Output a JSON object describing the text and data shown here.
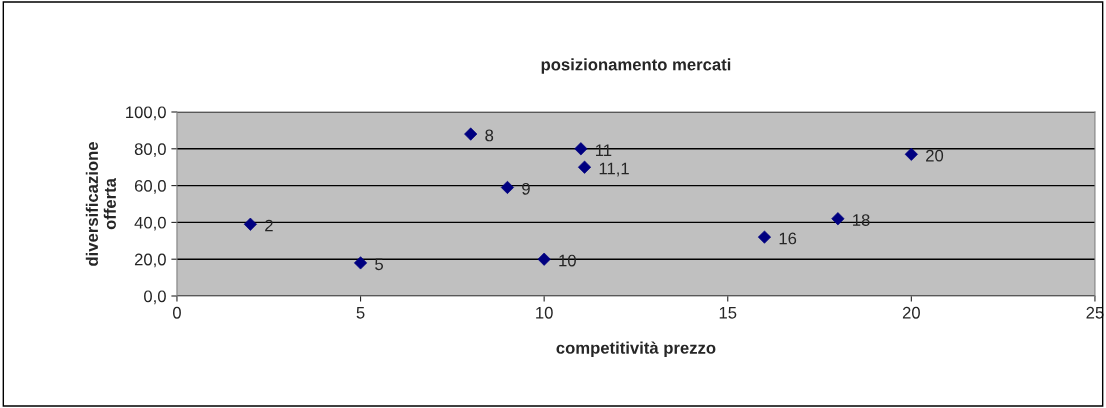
{
  "chart_data": {
    "type": "scatter",
    "title": "posizionamento mercati",
    "xlabel": "competitività prezzo",
    "ylabel": "diversificazione\nofferta",
    "x": [
      2,
      5,
      8,
      9,
      10,
      11,
      11.1,
      16,
      18,
      20
    ],
    "series": [
      {
        "color": "#000080",
        "values": [
          39,
          18,
          88,
          59,
          20,
          80,
          70,
          32,
          42,
          77
        ]
      }
    ],
    "marker": "diamond",
    "grid": "y",
    "legend": false,
    "xlim": [
      0,
      25
    ],
    "xticks": [
      0,
      5,
      10,
      15,
      20,
      25
    ],
    "ylim": [
      0,
      100
    ],
    "yticks": [
      {
        "value": 0,
        "label": "0,0"
      },
      {
        "value": 20,
        "label": "20,0"
      },
      {
        "value": 40,
        "label": "40,0"
      },
      {
        "value": 60,
        "label": "60,0"
      },
      {
        "value": 80,
        "label": "80,0"
      },
      {
        "value": 100,
        "label": "100,0"
      }
    ],
    "annotations": [
      {
        "text": "2",
        "x": 2,
        "y": 39
      },
      {
        "text": "5",
        "x": 5,
        "y": 18
      },
      {
        "text": "8",
        "x": 8,
        "y": 88
      },
      {
        "text": "9",
        "x": 9,
        "y": 59
      },
      {
        "text": "10",
        "x": 10,
        "y": 20
      },
      {
        "text": "11",
        "x": 11,
        "y": 80
      },
      {
        "text": "11,1",
        "x": 11.1,
        "y": 70
      },
      {
        "text": "16",
        "x": 16,
        "y": 32
      },
      {
        "text": "18",
        "x": 18,
        "y": 42
      },
      {
        "text": "20",
        "x": 20,
        "y": 77
      }
    ]
  }
}
